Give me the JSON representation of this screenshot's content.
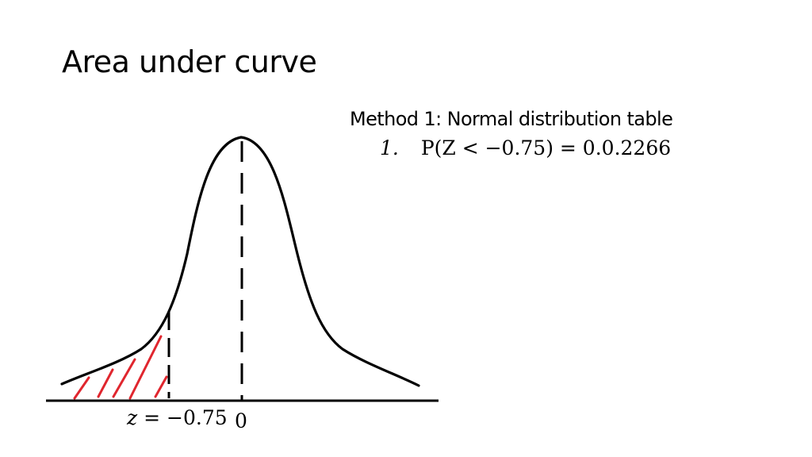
{
  "slide": {
    "title": "Area under curve",
    "method_heading": "Method 1: Normal distribution table",
    "step_number": "1.",
    "step_expression": "P(Z < −0.75) = 0.0.2266"
  },
  "diagram": {
    "z_label_variable": "z",
    "z_label_value": " = −0.75",
    "zero_label": "0",
    "shading_color": "#e0262e",
    "curve_color": "#000000"
  }
}
